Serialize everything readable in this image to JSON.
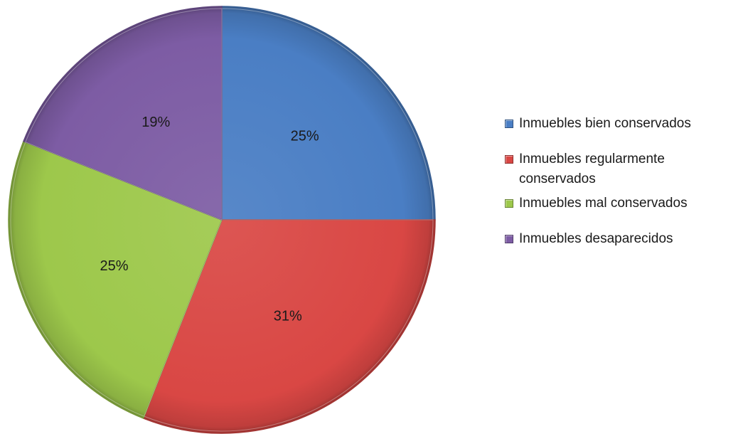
{
  "chart_data": {
    "type": "pie",
    "title": "",
    "categories": [
      "Inmuebles bien conservados",
      "Inmuebles regularmente conservados",
      "Inmuebles mal conservados",
      "Inmuebles desaparecidos"
    ],
    "values": [
      25,
      31,
      25,
      19
    ],
    "labels": [
      "25%",
      "31%",
      "25%",
      "19%"
    ],
    "colors": [
      "#4A7EC4",
      "#D94744",
      "#9DC84B",
      "#7D5CA4"
    ],
    "start_angle": "12 o'clock",
    "direction": "clockwise",
    "legend_position": "right",
    "style": "3d-bevel"
  },
  "legend": {
    "items": [
      {
        "label": "Inmuebles bien conservados",
        "color": "#4A7EC4"
      },
      {
        "label": "Inmuebles regularmente conservados",
        "color": "#D94744"
      },
      {
        "label": "Inmuebles mal conservados",
        "color": "#9DC84B"
      },
      {
        "label": "Inmuebles desaparecidos",
        "color": "#7D5CA4"
      }
    ]
  }
}
